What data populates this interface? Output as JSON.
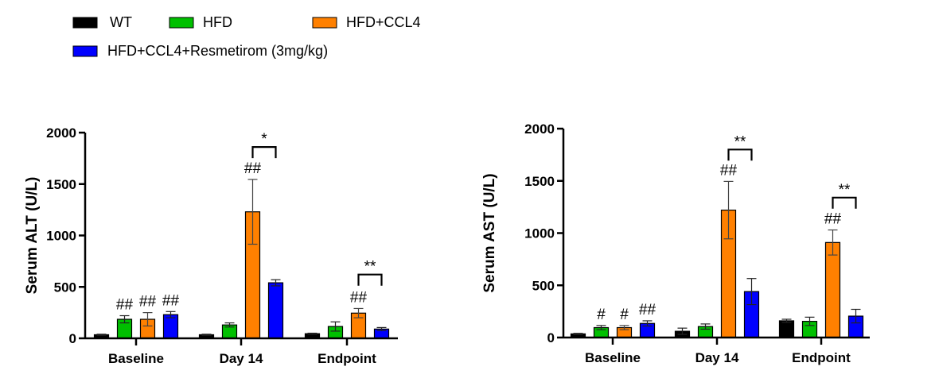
{
  "legend": [
    {
      "label": "WT",
      "color": "#000000"
    },
    {
      "label": "HFD",
      "color": "#00c000"
    },
    {
      "label": "HFD+CCL4",
      "color": "#ff8000"
    },
    {
      "label": "HFD+CCL4+Resmetirom (3mg/kg)",
      "color": "#0000ff"
    }
  ],
  "chart_data": [
    {
      "type": "bar",
      "title": "",
      "xlabel": "",
      "ylabel": "Serum ALT (U/L)",
      "ylim": [
        0,
        2000
      ],
      "yticks": [
        "0",
        "500",
        "1000",
        "1500",
        "2000"
      ],
      "categories": [
        "Baseline",
        "Day 14",
        "Endpoint"
      ],
      "series": [
        {
          "name": "WT",
          "values": [
            35,
            35,
            45
          ],
          "errors": [
            5,
            5,
            5
          ]
        },
        {
          "name": "HFD",
          "values": [
            185,
            130,
            115
          ],
          "errors": [
            35,
            20,
            45
          ]
        },
        {
          "name": "HFD+CCL4",
          "values": [
            185,
            1230,
            245
          ],
          "errors": [
            65,
            315,
            45
          ]
        },
        {
          "name": "HFD+CCL4+Resmetirom (3mg/kg)",
          "values": [
            230,
            540,
            90
          ],
          "errors": [
            30,
            30,
            15
          ]
        }
      ],
      "annotations": [
        {
          "category": 0,
          "series": 1,
          "text": "##"
        },
        {
          "category": 0,
          "series": 2,
          "text": "##"
        },
        {
          "category": 0,
          "series": 3,
          "text": "##"
        },
        {
          "category": 1,
          "series": 2,
          "text": "##"
        },
        {
          "category": 2,
          "series": 2,
          "text": "##"
        }
      ],
      "brackets": [
        {
          "category": 1,
          "from": 2,
          "to": 3,
          "text": "*",
          "level": 1860
        },
        {
          "category": 2,
          "from": 2,
          "to": 3,
          "text": "**",
          "level": 620
        }
      ]
    },
    {
      "type": "bar",
      "title": "",
      "xlabel": "",
      "ylabel": "Serum AST (U/L)",
      "ylim": [
        0,
        2000
      ],
      "yticks": [
        "0",
        "500",
        "1000",
        "1500",
        "2000"
      ],
      "categories": [
        "Baseline",
        "Day 14",
        "Endpoint"
      ],
      "series": [
        {
          "name": "WT",
          "values": [
            35,
            60,
            160
          ],
          "errors": [
            5,
            30,
            15
          ]
        },
        {
          "name": "HFD",
          "values": [
            95,
            105,
            155
          ],
          "errors": [
            20,
            25,
            40
          ]
        },
        {
          "name": "HFD+CCL4",
          "values": [
            95,
            1220,
            910
          ],
          "errors": [
            20,
            275,
            120
          ]
        },
        {
          "name": "HFD+CCL4+Resmetirom (3mg/kg)",
          "values": [
            135,
            440,
            205
          ],
          "errors": [
            25,
            125,
            65
          ]
        }
      ],
      "annotations": [
        {
          "category": 0,
          "series": 1,
          "text": "#"
        },
        {
          "category": 0,
          "series": 2,
          "text": "#"
        },
        {
          "category": 0,
          "series": 3,
          "text": "##"
        },
        {
          "category": 1,
          "series": 2,
          "text": "##"
        },
        {
          "category": 2,
          "series": 2,
          "text": "##"
        }
      ],
      "brackets": [
        {
          "category": 1,
          "from": 2,
          "to": 3,
          "text": "**",
          "level": 1800
        },
        {
          "category": 2,
          "from": 2,
          "to": 3,
          "text": "**",
          "level": 1340
        }
      ]
    }
  ]
}
